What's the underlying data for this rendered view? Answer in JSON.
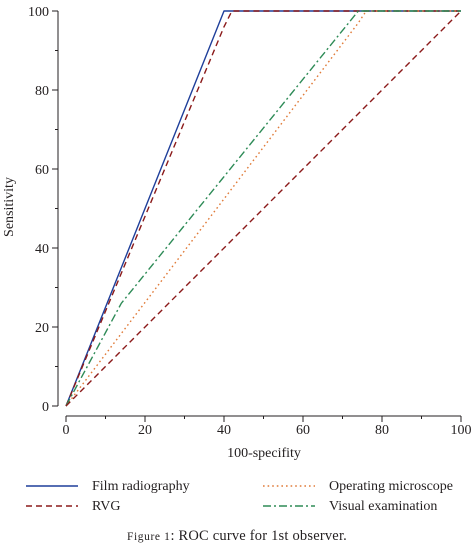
{
  "chart_data": {
    "type": "line",
    "title": "",
    "xlabel": "100-specifity",
    "ylabel": "Sensitivity",
    "xlim": [
      0,
      100
    ],
    "ylim": [
      0,
      100
    ],
    "x_ticks": [
      0,
      20,
      40,
      60,
      80,
      100
    ],
    "y_ticks": [
      0,
      20,
      40,
      60,
      80,
      100
    ],
    "grid": false,
    "legend_position": "bottom",
    "series": [
      {
        "name": "Film radiography",
        "color": "#1f3f9a",
        "dash": "solid",
        "x": [
          0,
          40,
          100
        ],
        "y": [
          0,
          100,
          100
        ]
      },
      {
        "name": "RVG",
        "color": "#8b1a1a",
        "dash": "dashed",
        "x": [
          0,
          40,
          42,
          100
        ],
        "y": [
          0,
          96,
          100,
          100
        ]
      },
      {
        "name": "Operating microscope",
        "color": "#e07b39",
        "dash": "dotted",
        "x": [
          0,
          74,
          76,
          100
        ],
        "y": [
          0,
          97,
          100,
          100
        ]
      },
      {
        "name": "Visual examination",
        "color": "#2e8b57",
        "dash": "dash-dot",
        "x": [
          0,
          14,
          74,
          100
        ],
        "y": [
          0,
          26,
          100,
          100
        ]
      },
      {
        "name": "",
        "color": "#8b1a1a",
        "dash": "dashed",
        "x": [
          0,
          100
        ],
        "y": [
          0,
          100
        ]
      }
    ]
  },
  "legend": {
    "items": [
      {
        "label": "Film radiography",
        "color": "#1f3f9a",
        "dash": "solid"
      },
      {
        "label": "Operating microscope",
        "color": "#e07b39",
        "dash": "dotted"
      },
      {
        "label": "RVG",
        "color": "#8b1a1a",
        "dash": "dashed"
      },
      {
        "label": "Visual examination",
        "color": "#2e8b57",
        "dash": "dash-dot"
      }
    ]
  },
  "caption": {
    "prefix": "Figure 1",
    "text": ": ROC curve for 1st observer."
  }
}
